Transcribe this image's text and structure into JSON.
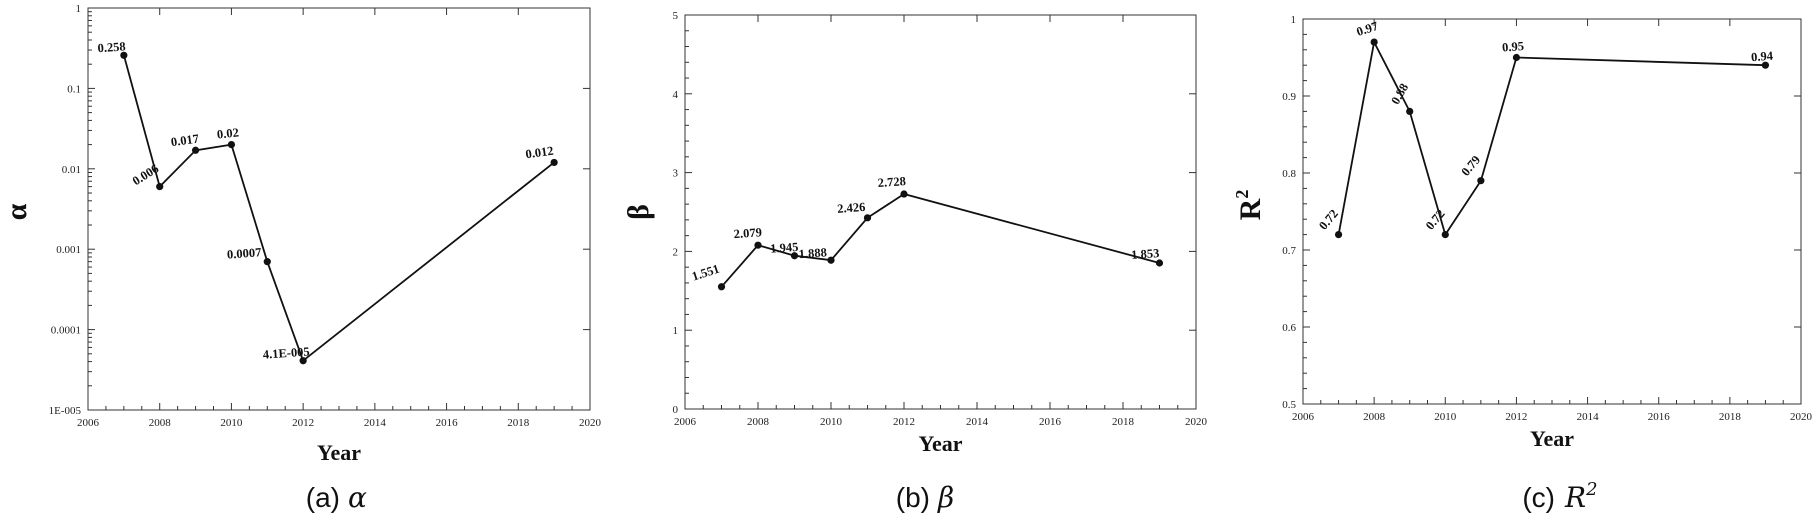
{
  "chart_data": [
    {
      "type": "line",
      "panel_label": "(a)",
      "panel_symbol": "α",
      "xlabel": "Year",
      "ylabel": "α",
      "yscale": "log",
      "xlim": [
        2006,
        2020
      ],
      "ylim": [
        1e-05,
        1
      ],
      "x_ticks": [
        2006,
        2008,
        2010,
        2012,
        2014,
        2016,
        2018,
        2020
      ],
      "y_ticks": [
        {
          "value": 1e-05,
          "label": "1E-005"
        },
        {
          "value": 0.0001,
          "label": "0.0001"
        },
        {
          "value": 0.001,
          "label": "0.001"
        },
        {
          "value": 0.01,
          "label": "0.01"
        },
        {
          "value": 0.1,
          "label": "0.1"
        },
        {
          "value": 1,
          "label": "1"
        }
      ],
      "points": [
        {
          "x": 2007,
          "y": 0.258,
          "label": "0.258"
        },
        {
          "x": 2008,
          "y": 0.006,
          "label": "0.006"
        },
        {
          "x": 2009,
          "y": 0.017,
          "label": "0.017"
        },
        {
          "x": 2010,
          "y": 0.02,
          "label": "0.02"
        },
        {
          "x": 2011,
          "y": 0.0007,
          "label": "0.0007"
        },
        {
          "x": 2012,
          "y": 4.1e-05,
          "label": "4.1E-005"
        },
        {
          "x": 2019,
          "y": 0.012,
          "label": "0.012"
        }
      ]
    },
    {
      "type": "line",
      "panel_label": "(b)",
      "panel_symbol": "β",
      "xlabel": "Year",
      "ylabel": "β",
      "yscale": "linear",
      "xlim": [
        2006,
        2020
      ],
      "ylim": [
        0,
        5
      ],
      "x_ticks": [
        2006,
        2008,
        2010,
        2012,
        2014,
        2016,
        2018,
        2020
      ],
      "y_ticks": [
        {
          "value": 0,
          "label": "0"
        },
        {
          "value": 1,
          "label": "1"
        },
        {
          "value": 2,
          "label": "2"
        },
        {
          "value": 3,
          "label": "3"
        },
        {
          "value": 4,
          "label": "4"
        },
        {
          "value": 5,
          "label": "5"
        }
      ],
      "points": [
        {
          "x": 2007,
          "y": 1.551,
          "label": "1.551"
        },
        {
          "x": 2008,
          "y": 2.079,
          "label": "2.079"
        },
        {
          "x": 2009,
          "y": 1.945,
          "label": "1.945"
        },
        {
          "x": 2010,
          "y": 1.888,
          "label": "1.888"
        },
        {
          "x": 2011,
          "y": 2.426,
          "label": "2.426"
        },
        {
          "x": 2012,
          "y": 2.728,
          "label": "2.728"
        },
        {
          "x": 2019,
          "y": 1.853,
          "label": "1.853"
        }
      ]
    },
    {
      "type": "line",
      "panel_label": "(c)",
      "panel_symbol": "R",
      "xlabel": "Year",
      "ylabel": "R",
      "ylabel_superscript": "2",
      "yscale": "linear",
      "xlim": [
        2006,
        2020
      ],
      "ylim": [
        0.5,
        1
      ],
      "x_ticks": [
        2006,
        2008,
        2010,
        2012,
        2014,
        2016,
        2018,
        2020
      ],
      "y_ticks": [
        {
          "value": 0.5,
          "label": "0.5"
        },
        {
          "value": 0.6,
          "label": "0.6"
        },
        {
          "value": 0.7,
          "label": "0.7"
        },
        {
          "value": 0.8,
          "label": "0.8"
        },
        {
          "value": 0.9,
          "label": "0.9"
        },
        {
          "value": 1,
          "label": "1"
        }
      ],
      "points": [
        {
          "x": 2007,
          "y": 0.72,
          "label": "0.72"
        },
        {
          "x": 2008,
          "y": 0.97,
          "label": "0.97"
        },
        {
          "x": 2009,
          "y": 0.88,
          "label": "0.88"
        },
        {
          "x": 2010,
          "y": 0.72,
          "label": "0.72"
        },
        {
          "x": 2011,
          "y": 0.79,
          "label": "0.79"
        },
        {
          "x": 2012,
          "y": 0.95,
          "label": "0.95"
        },
        {
          "x": 2019,
          "y": 0.94,
          "label": "0.94"
        }
      ]
    }
  ]
}
